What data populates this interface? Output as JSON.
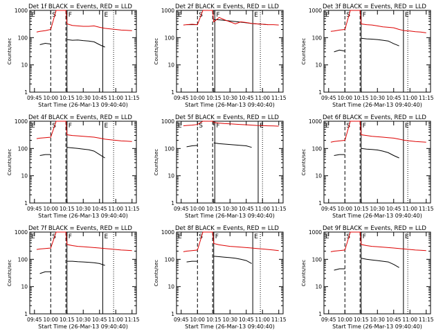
{
  "figure": {
    "colors": {
      "events": "#000000",
      "lld": "#dd0000",
      "axes": "#000000",
      "background": "#ffffff"
    },
    "shared": {
      "xticks": [
        "09:45",
        "10:00",
        "10:15",
        "10:30",
        "10:45",
        "11:00",
        "11:15"
      ],
      "yticks": [
        "1",
        "10",
        "100",
        "1000"
      ],
      "ylabel": "Counts/sec",
      "xlabel": "Start Time (26-Mar-13 09:40:40)",
      "markers": [
        "E",
        "S",
        "F",
        "E"
      ]
    }
  },
  "chart_data": [
    {
      "type": "line",
      "scale_y": "log",
      "ylim": [
        1,
        1000
      ],
      "xlim": [
        "09:40:40",
        "11:19"
      ],
      "title": "Det 1f BLACK = Events, RED = LLD",
      "xlabel": "Start Time (26-Mar-13 09:40:40)",
      "ylabel": "Counts/sec",
      "x": [
        "09:47",
        "09:50",
        "09:55",
        "10:00",
        "10:05",
        "10:10",
        "10:14",
        "10:15",
        "10:20",
        "10:25",
        "10:30",
        "10:35",
        "10:40",
        "10:45",
        "10:50",
        "10:55",
        "11:00",
        "11:05",
        "11:10",
        "11:15"
      ],
      "series": [
        {
          "name": "Events",
          "values": [
            null,
            55,
            62,
            58,
            null,
            null,
            null,
            85,
            80,
            82,
            78,
            75,
            70,
            55,
            45,
            null,
            null,
            null,
            null,
            null
          ]
        },
        {
          "name": "LLD",
          "values": [
            160,
            170,
            180,
            200,
            1000,
            1000,
            1000,
            320,
            280,
            270,
            260,
            260,
            270,
            240,
            220,
            210,
            200,
            190,
            185,
            180
          ]
        }
      ],
      "vlines": {
        "dashed": [
          "10:00",
          "10:14"
        ],
        "solid": [
          "10:15",
          "10:48"
        ],
        "dotted": [
          "10:58"
        ]
      }
    },
    {
      "type": "line",
      "scale_y": "log",
      "ylim": [
        1,
        1000
      ],
      "xlim": [
        "09:40:40",
        "11:19"
      ],
      "title": "Det 2f BLACK = Events, RED = LLD",
      "xlabel": "Start Time (26-Mar-13 09:40:40)",
      "ylabel": "Counts/sec",
      "x": [
        "09:47",
        "09:50",
        "09:55",
        "10:00",
        "10:05",
        "10:10",
        "10:14",
        "10:15",
        "10:20",
        "10:25",
        "10:30",
        "10:35",
        "10:40",
        "10:45",
        "10:50",
        "10:55",
        "11:00",
        "11:05",
        "11:10",
        "11:15"
      ],
      "series": [
        {
          "name": "Events",
          "values": [
            null,
            300,
            300,
            300,
            null,
            null,
            null,
            460,
            450,
            430,
            410,
            390,
            370,
            350,
            330,
            320,
            310,
            300,
            null,
            null
          ]
        },
        {
          "name": "LLD",
          "values": [
            290,
            300,
            310,
            300,
            1000,
            1000,
            1000,
            380,
            550,
            450,
            380,
            320,
            380,
            360,
            330,
            320,
            310,
            300,
            300,
            290
          ]
        }
      ],
      "vlines": {
        "dashed": [
          "10:00",
          "10:14"
        ],
        "solid": [
          "10:16",
          "10:51"
        ],
        "dotted": [
          "10:58"
        ]
      }
    },
    {
      "type": "line",
      "scale_y": "log",
      "ylim": [
        1,
        1000
      ],
      "xlim": [
        "09:40:40",
        "11:19"
      ],
      "title": "Det 3f BLACK = Events, RED = LLD",
      "xlabel": "Start Time (26-Mar-13 09:40:40)",
      "ylabel": "Counts/sec",
      "x": [
        "09:47",
        "09:50",
        "09:55",
        "10:00",
        "10:05",
        "10:10",
        "10:14",
        "10:15",
        "10:20",
        "10:25",
        "10:30",
        "10:35",
        "10:40",
        "10:45",
        "10:50",
        "10:55",
        "11:00",
        "11:05",
        "11:10",
        "11:15"
      ],
      "series": [
        {
          "name": "Events",
          "values": [
            null,
            30,
            35,
            32,
            null,
            null,
            null,
            95,
            90,
            88,
            85,
            80,
            75,
            60,
            50,
            null,
            null,
            null,
            null,
            null
          ]
        },
        {
          "name": "LLD",
          "values": [
            170,
            175,
            190,
            200,
            1000,
            1000,
            1000,
            320,
            300,
            290,
            270,
            250,
            240,
            230,
            200,
            180,
            175,
            165,
            160,
            150
          ]
        }
      ],
      "vlines": {
        "dashed": [
          "10:00",
          "10:14"
        ],
        "solid": [
          "10:15",
          "10:54"
        ],
        "dotted": [
          "10:58"
        ]
      }
    },
    {
      "type": "line",
      "scale_y": "log",
      "ylim": [
        1,
        1000
      ],
      "xlim": [
        "09:40:40",
        "11:19"
      ],
      "title": "Det 4f BLACK = Events, RED = LLD",
      "xlabel": "Start Time (26-Mar-13 09:40:40)",
      "ylabel": "Counts/sec",
      "x": [
        "09:47",
        "09:50",
        "09:55",
        "10:00",
        "10:05",
        "10:10",
        "10:14",
        "10:15",
        "10:20",
        "10:25",
        "10:30",
        "10:35",
        "10:40",
        "10:45",
        "10:50",
        "10:55",
        "11:00",
        "11:05",
        "11:10",
        "11:15"
      ],
      "series": [
        {
          "name": "Events",
          "values": [
            null,
            55,
            60,
            60,
            null,
            null,
            null,
            110,
            105,
            100,
            95,
            90,
            80,
            60,
            45,
            null,
            null,
            null,
            null,
            null
          ]
        },
        {
          "name": "LLD",
          "values": [
            230,
            240,
            250,
            260,
            1000,
            1000,
            1000,
            320,
            300,
            290,
            280,
            270,
            260,
            240,
            220,
            210,
            200,
            190,
            185,
            180
          ]
        }
      ],
      "vlines": {
        "dashed": [
          "10:00",
          "10:14"
        ],
        "solid": [
          "10:15",
          "10:48"
        ],
        "dotted": [
          "10:58"
        ]
      }
    },
    {
      "type": "line",
      "scale_y": "log",
      "ylim": [
        1,
        1000
      ],
      "xlim": [
        "09:40:40",
        "11:19"
      ],
      "title": "Det 5f BLACK = Events, RED = LLD",
      "xlabel": "Start Time (26-Mar-13 09:40:40)",
      "ylabel": "Counts/sec",
      "x": [
        "09:47",
        "09:50",
        "09:55",
        "10:00",
        "10:05",
        "10:10",
        "10:14",
        "10:15",
        "10:20",
        "10:25",
        "10:30",
        "10:35",
        "10:40",
        "10:45",
        "10:50",
        "10:55",
        "11:00",
        "11:05",
        "11:10",
        "11:15"
      ],
      "series": [
        {
          "name": "Events",
          "values": [
            null,
            115,
            125,
            130,
            null,
            null,
            null,
            160,
            150,
            145,
            140,
            135,
            130,
            125,
            110,
            null,
            null,
            null,
            null,
            null
          ]
        },
        {
          "name": "LLD",
          "values": [
            680,
            700,
            720,
            760,
            1000,
            1000,
            1000,
            900,
            850,
            820,
            800,
            780,
            760,
            740,
            720,
            700,
            690,
            680,
            670,
            660
          ]
        }
      ],
      "vlines": {
        "dashed": [
          "10:00",
          "10:14"
        ],
        "solid": [
          "10:16",
          "10:56"
        ],
        "dotted": [
          "11:00"
        ]
      }
    },
    {
      "type": "line",
      "scale_y": "log",
      "ylim": [
        1,
        1000
      ],
      "xlim": [
        "09:40:40",
        "11:19"
      ],
      "title": "Det 6f BLACK = Events, RED = LLD",
      "xlabel": "Start Time (26-Mar-13 09:40:40)",
      "ylabel": "Counts/sec",
      "x": [
        "09:47",
        "09:50",
        "09:55",
        "10:00",
        "10:05",
        "10:10",
        "10:14",
        "10:15",
        "10:20",
        "10:25",
        "10:30",
        "10:35",
        "10:40",
        "10:45",
        "10:50",
        "10:55",
        "11:00",
        "11:05",
        "11:10",
        "11:15"
      ],
      "series": [
        {
          "name": "Events",
          "values": [
            null,
            55,
            60,
            60,
            null,
            null,
            null,
            100,
            95,
            92,
            88,
            80,
            70,
            55,
            45,
            null,
            null,
            null,
            null,
            null
          ]
        },
        {
          "name": "LLD",
          "values": [
            170,
            180,
            190,
            200,
            1000,
            1000,
            1000,
            320,
            300,
            280,
            270,
            260,
            250,
            240,
            220,
            200,
            190,
            180,
            175,
            170
          ]
        }
      ],
      "vlines": {
        "dashed": [
          "10:00",
          "10:14"
        ],
        "solid": [
          "10:15",
          "10:54"
        ],
        "dotted": [
          "10:58"
        ]
      }
    },
    {
      "type": "line",
      "scale_y": "log",
      "ylim": [
        1,
        1000
      ],
      "xlim": [
        "09:40:40",
        "11:19"
      ],
      "title": "Det 7f BLACK = Events, RED = LLD",
      "xlabel": "Start Time (26-Mar-13 09:40:40)",
      "ylabel": "Counts/sec",
      "x": [
        "09:47",
        "09:50",
        "09:55",
        "10:00",
        "10:05",
        "10:10",
        "10:14",
        "10:15",
        "10:20",
        "10:25",
        "10:30",
        "10:35",
        "10:40",
        "10:45",
        "10:50",
        "10:55",
        "11:00",
        "11:05",
        "11:10",
        "11:15"
      ],
      "series": [
        {
          "name": "Events",
          "values": [
            null,
            30,
            35,
            35,
            null,
            null,
            null,
            85,
            85,
            82,
            80,
            78,
            75,
            70,
            60,
            null,
            null,
            null,
            null,
            null
          ]
        },
        {
          "name": "LLD",
          "values": [
            230,
            240,
            250,
            260,
            1000,
            1000,
            1000,
            350,
            320,
            300,
            290,
            280,
            270,
            260,
            250,
            240,
            230,
            220,
            215,
            210
          ]
        }
      ],
      "vlines": {
        "dashed": [
          "10:00",
          "10:14"
        ],
        "solid": [
          "10:15",
          "10:48"
        ],
        "dotted": [
          "10:58"
        ]
      }
    },
    {
      "type": "line",
      "scale_y": "log",
      "ylim": [
        1,
        1000
      ],
      "xlim": [
        "09:40:40",
        "11:19"
      ],
      "title": "Det 8f BLACK = Events, RED = LLD",
      "xlabel": "Start Time (26-Mar-13 09:40:40)",
      "ylabel": "Counts/sec",
      "x": [
        "09:47",
        "09:50",
        "09:55",
        "10:00",
        "10:05",
        "10:10",
        "10:14",
        "10:15",
        "10:20",
        "10:25",
        "10:30",
        "10:35",
        "10:40",
        "10:45",
        "10:50",
        "10:55",
        "11:00",
        "11:05",
        "11:10",
        "11:15"
      ],
      "series": [
        {
          "name": "Events",
          "values": [
            null,
            80,
            85,
            85,
            null,
            null,
            null,
            130,
            125,
            120,
            115,
            110,
            100,
            90,
            70,
            null,
            null,
            null,
            null,
            null
          ]
        },
        {
          "name": "LLD",
          "values": [
            190,
            200,
            210,
            220,
            1000,
            1000,
            1000,
            380,
            340,
            320,
            300,
            290,
            280,
            270,
            260,
            250,
            240,
            230,
            220,
            210
          ]
        }
      ],
      "vlines": {
        "dashed": [
          "10:00",
          "10:14"
        ],
        "solid": [
          "10:15",
          "10:51"
        ],
        "dotted": [
          "10:58"
        ]
      }
    },
    {
      "type": "line",
      "scale_y": "log",
      "ylim": [
        1,
        1000
      ],
      "xlim": [
        "09:40:40",
        "11:19"
      ],
      "title": "Det 9f BLACK = Events, RED = LLD",
      "xlabel": "Start Time (26-Mar-13 09:40:40)",
      "ylabel": "Counts/sec",
      "x": [
        "09:47",
        "09:50",
        "09:55",
        "10:00",
        "10:05",
        "10:10",
        "10:14",
        "10:15",
        "10:20",
        "10:25",
        "10:30",
        "10:35",
        "10:40",
        "10:45",
        "10:50",
        "10:55",
        "11:00",
        "11:05",
        "11:10",
        "11:15"
      ],
      "series": [
        {
          "name": "Events",
          "values": [
            null,
            40,
            45,
            45,
            null,
            null,
            null,
            110,
            100,
            95,
            90,
            85,
            80,
            65,
            50,
            null,
            null,
            null,
            null,
            null
          ]
        },
        {
          "name": "LLD",
          "values": [
            190,
            200,
            210,
            220,
            1000,
            1000,
            1000,
            350,
            320,
            300,
            290,
            280,
            270,
            260,
            250,
            240,
            230,
            220,
            215,
            210
          ]
        }
      ],
      "vlines": {
        "dashed": [
          "10:00",
          "10:14"
        ],
        "solid": [
          "10:15",
          "10:54"
        ],
        "dotted": [
          "10:58"
        ]
      }
    }
  ]
}
